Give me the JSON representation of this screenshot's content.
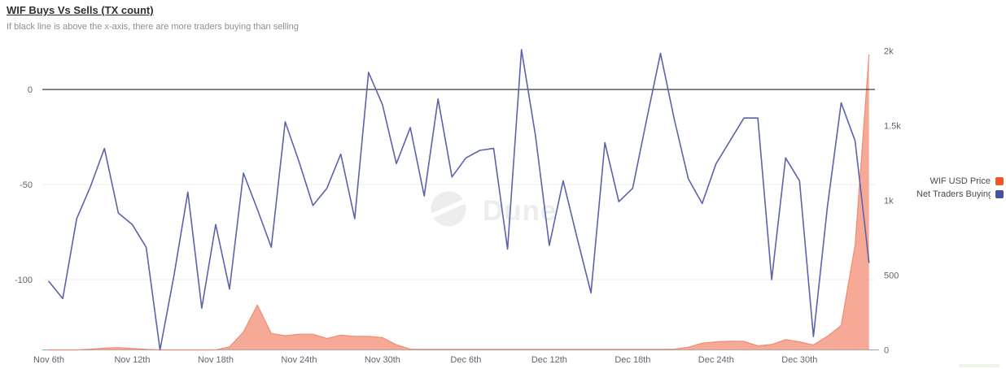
{
  "header": {
    "title": "WIF Buys Vs Sells (TX count)",
    "subtitle": "If black line is above the x-axis, there are more traders buying than selling"
  },
  "watermark": {
    "text": "Dune"
  },
  "legend": {
    "items": [
      {
        "label": "WIF USD Price",
        "color": "#f2552c"
      },
      {
        "label": "Net Traders Buying",
        "color": "#4a50a4"
      }
    ]
  },
  "chart_data": {
    "type": "line+area",
    "title": "WIF Buys Vs Sells (TX count)",
    "grid": "horizontal",
    "legend_position": "right",
    "x": [
      "Nov 6",
      "Nov 7",
      "Nov 8",
      "Nov 9",
      "Nov 10",
      "Nov 11",
      "Nov 12",
      "Nov 13",
      "Nov 14",
      "Nov 15",
      "Nov 16",
      "Nov 17",
      "Nov 18",
      "Nov 19",
      "Nov 20",
      "Nov 21",
      "Nov 22",
      "Nov 23",
      "Nov 24",
      "Nov 25",
      "Nov 26",
      "Nov 27",
      "Nov 28",
      "Nov 29",
      "Nov 30",
      "Dec 1",
      "Dec 2",
      "Dec 3",
      "Dec 4",
      "Dec 5",
      "Dec 6",
      "Dec 7",
      "Dec 8",
      "Dec 9",
      "Dec 10",
      "Dec 11",
      "Dec 12",
      "Dec 13",
      "Dec 14",
      "Dec 15",
      "Dec 16",
      "Dec 17",
      "Dec 18",
      "Dec 19",
      "Dec 20",
      "Dec 21",
      "Dec 22",
      "Dec 23",
      "Dec 24",
      "Dec 25",
      "Dec 26",
      "Dec 27",
      "Dec 28",
      "Dec 29",
      "Dec 30",
      "Dec 31",
      "Jan 1",
      "Jan 2",
      "Jan 3",
      "Jan 4"
    ],
    "x_ticks": {
      "indices": [
        0,
        6,
        12,
        18,
        24,
        30,
        36,
        42,
        48,
        54
      ],
      "labels": [
        "Nov 6th",
        "Nov 12th",
        "Nov 18th",
        "Nov 24th",
        "Nov 30th",
        "Dec 6th",
        "Dec 12th",
        "Dec 18th",
        "Dec 24th",
        "Dec 30th"
      ]
    },
    "left_axis": {
      "ticks": [
        0,
        -50,
        -100
      ],
      "labels": [
        "0",
        "-50",
        "-100"
      ],
      "range": [
        -137,
        24
      ]
    },
    "right_axis": {
      "ticks": [
        2000,
        1500,
        1000,
        500,
        0
      ],
      "labels": [
        "2k",
        "1.5k",
        "1k",
        "500",
        "0"
      ],
      "range": [
        0,
        2000
      ]
    },
    "zero_line_value": 0,
    "series": [
      {
        "name": "WIF USD Price",
        "type": "area",
        "axis": "right",
        "fill": "#f6a491",
        "stroke": "#ee8d75",
        "values": [
          0,
          0,
          0,
          5,
          12,
          15,
          10,
          3,
          0,
          0,
          0,
          0,
          0,
          20,
          120,
          300,
          110,
          95,
          105,
          105,
          76,
          99,
          91,
          91,
          82,
          35,
          5,
          3,
          3,
          3,
          3,
          3,
          3,
          3,
          3,
          3,
          3,
          3,
          3,
          3,
          3,
          3,
          3,
          3,
          3,
          5,
          18,
          45,
          54,
          58,
          57,
          27,
          36,
          69,
          54,
          33,
          91,
          163,
          700,
          1975
        ]
      },
      {
        "name": "Net Traders Buying",
        "type": "line",
        "axis": "left",
        "stroke": "#5c62ab",
        "values": [
          -101,
          -110,
          -68,
          -51,
          -31,
          -65,
          -71,
          -83,
          -137,
          -98,
          -54,
          -115,
          -71,
          -105,
          -44,
          -63,
          -83,
          -17,
          -38,
          -61,
          -52,
          -34,
          -68,
          9,
          -8,
          -39,
          -20,
          -56,
          -5,
          -46,
          -36,
          -32,
          -31,
          -84,
          21,
          -24,
          -82,
          -48,
          -78,
          -107,
          -28,
          -59,
          -52,
          -16,
          19,
          -16,
          -47,
          -60,
          -39,
          -27,
          -15,
          -15,
          -100,
          -36,
          -48,
          -130,
          -62,
          -7,
          -27,
          -91
        ]
      }
    ],
    "colors": {
      "zero_line": "#4a4a4a",
      "gridline": "#ececec",
      "axis_line": "#9aa0a6",
      "tick_label": "#5f6670",
      "watermark": "#ededed"
    }
  }
}
